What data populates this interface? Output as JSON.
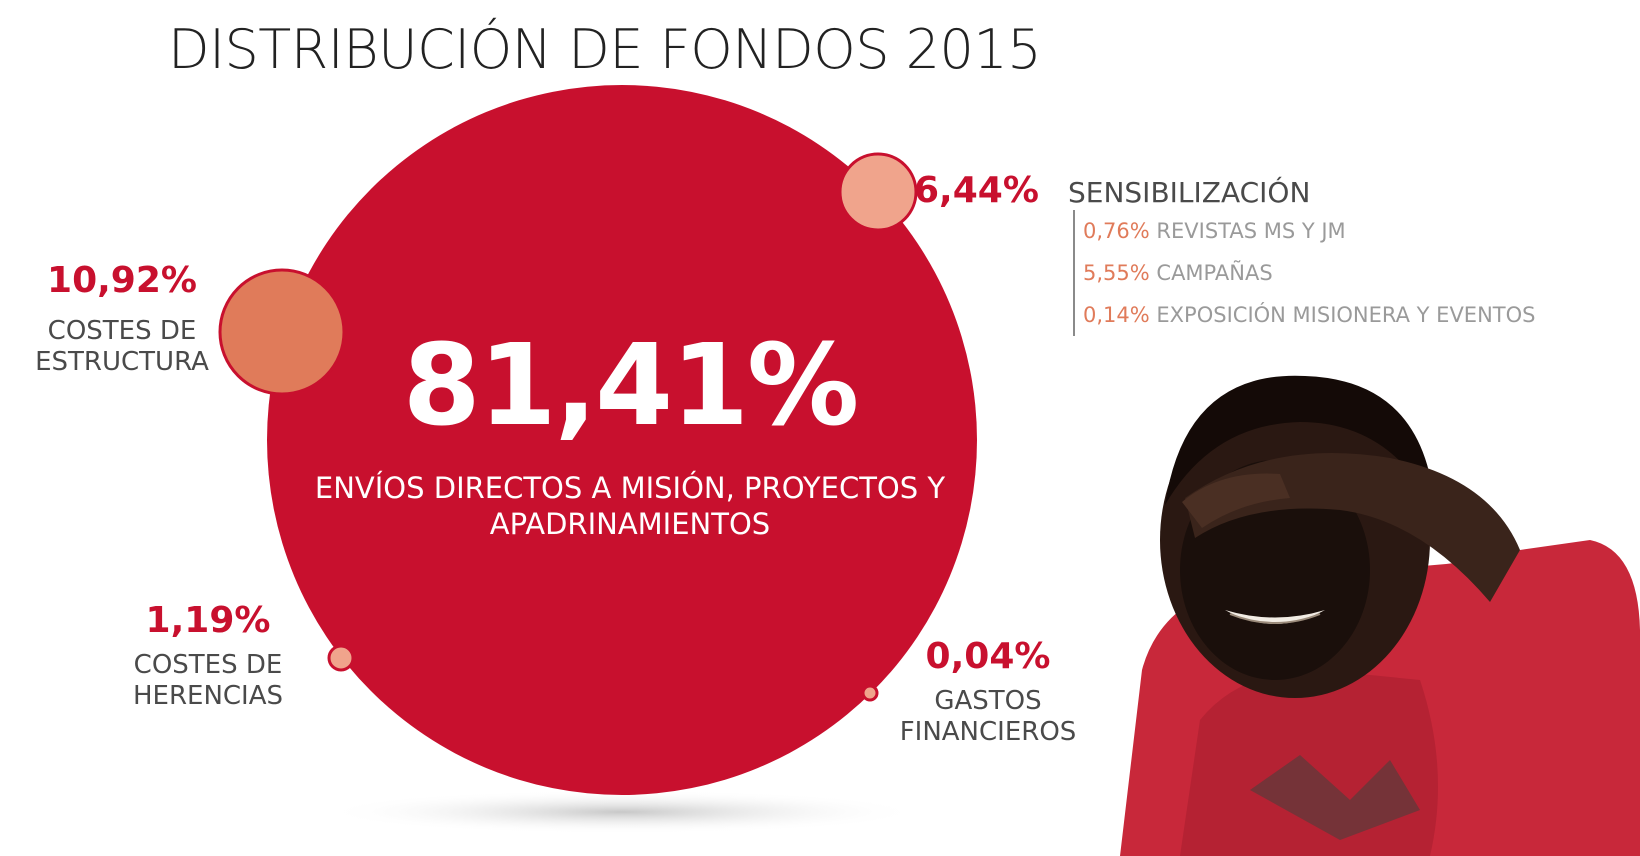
{
  "title": "DISTRIBUCIÓN DE FONDOS 2015",
  "colors": {
    "main": "#c8102e",
    "secondary": "#e07b5a",
    "light": "#f0a48c",
    "text": "#4a4a4a"
  },
  "chart_data": {
    "type": "bubble",
    "title": "DISTRIBUCIÓN DE FONDOS 2015",
    "unit": "%",
    "items": [
      {
        "key": "envios",
        "value": 81.41,
        "value_label": "81,41%",
        "label": "ENVÍOS DIRECTOS A MISIÓN, PROYECTOS Y APADRINAMIENTOS"
      },
      {
        "key": "estructura",
        "value": 10.92,
        "value_label": "10,92%",
        "label": "COSTES DE ESTRUCTURA"
      },
      {
        "key": "sensibilizacion",
        "value": 6.44,
        "value_label": "6,44%",
        "label": "SENSIBILIZACIÓN",
        "breakdown": [
          {
            "value": 0.76,
            "value_label": "0,76%",
            "label": "REVISTAS MS Y JM"
          },
          {
            "value": 5.55,
            "value_label": "5,55%",
            "label": "CAMPAÑAS"
          },
          {
            "value": 0.14,
            "value_label": "0,14%",
            "label": "EXPOSICIÓN MISIONERA Y EVENTOS"
          }
        ]
      },
      {
        "key": "herencias",
        "value": 1.19,
        "value_label": "1,19%",
        "label": "COSTES DE HERENCIAS"
      },
      {
        "key": "financieros",
        "value": 0.04,
        "value_label": "0,04%",
        "label": "GASTOS FINANCIEROS"
      }
    ]
  }
}
